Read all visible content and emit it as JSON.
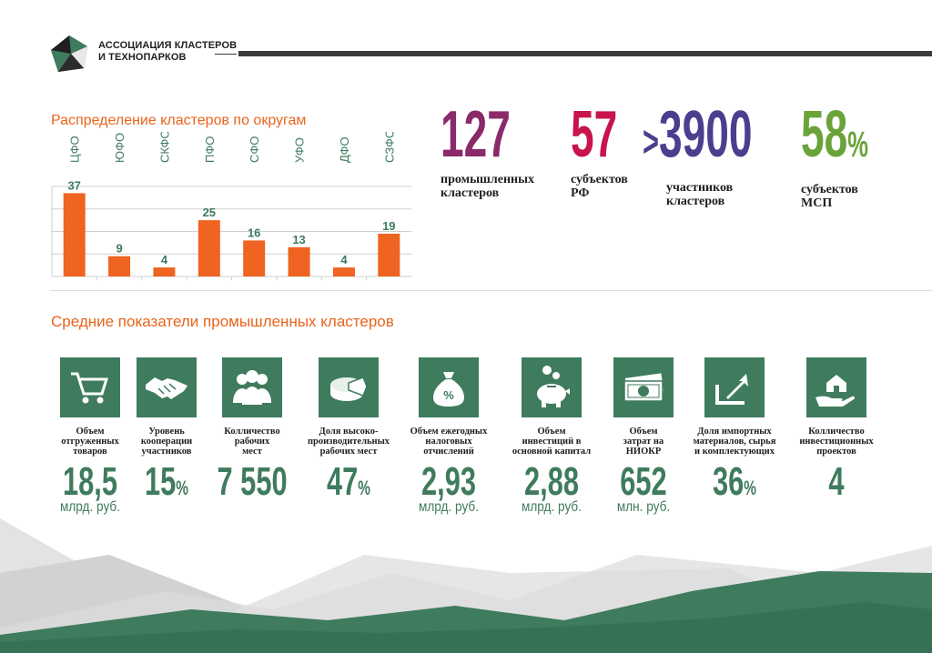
{
  "header": {
    "org_line1": "АССОЦИАЦИЯ КЛАСТЕРОВ",
    "org_line2": "И ТЕХНОПАРКОВ"
  },
  "chart_title": "Распределение кластеров по округам",
  "chart_data": {
    "type": "bar",
    "title": "Распределение кластеров по округам",
    "categories": [
      "ЦФО",
      "ЮФО",
      "СКФО",
      "ПФО",
      "СФО",
      "УФО",
      "ДФО",
      "СЗФО"
    ],
    "values": [
      37,
      9,
      4,
      25,
      16,
      13,
      4,
      19
    ],
    "ylim": [
      0,
      40
    ],
    "grid": true,
    "bar_color": "#ee6420",
    "label_color": "#3f7b5d"
  },
  "kpis": [
    {
      "value": "127",
      "prefix": "",
      "suffix": "",
      "label1": "промышленных",
      "label2": "кластеров",
      "color": "#8a2a6a"
    },
    {
      "value": "57",
      "prefix": "",
      "suffix": "",
      "label1": "субъектов",
      "label2": "РФ",
      "color": "#c8134c"
    },
    {
      "value": "3900",
      "prefix": ">",
      "suffix": "",
      "label1": "участников",
      "label2": "кластеров",
      "color": "#4a3f8f"
    },
    {
      "value": "58",
      "prefix": "",
      "suffix": "%",
      "label1": "субъектов",
      "label2": "МСП",
      "color": "#6aa33a"
    }
  ],
  "section2_title": "Средние показатели промышленных кластеров",
  "indicators": [
    {
      "icon": "cart-icon",
      "label": [
        "Объем",
        "отгруженных",
        "товаров"
      ],
      "value": "18,5",
      "pct": "",
      "unit": "млрд. руб."
    },
    {
      "icon": "handshake-icon",
      "label": [
        "Уровень",
        "кооперации",
        "участников"
      ],
      "value": "15",
      "pct": "%",
      "unit": ""
    },
    {
      "icon": "workers-icon",
      "label": [
        "Колличество",
        "рабочих",
        "мест"
      ],
      "value": "7 550",
      "pct": "",
      "unit": ""
    },
    {
      "icon": "pie-icon",
      "label": [
        "Доля высоко-",
        "производительных",
        "рабочих мест"
      ],
      "value": "47",
      "pct": "%",
      "unit": ""
    },
    {
      "icon": "money-bag-icon",
      "label": [
        "Объем ежегодных",
        "налоговых",
        "отчислений"
      ],
      "value": "2,93",
      "pct": "",
      "unit": "млрд. руб."
    },
    {
      "icon": "piggy-bank-icon",
      "label": [
        "Объем",
        "инвестиций в",
        "основной капитал"
      ],
      "value": "2,88",
      "pct": "",
      "unit": "млрд. руб."
    },
    {
      "icon": "banknotes-icon",
      "label": [
        "Объем",
        "затрат на",
        "НИОКР"
      ],
      "value": "652",
      "pct": "",
      "unit": "млн. руб."
    },
    {
      "icon": "import-icon",
      "label": [
        "Доля импортных",
        "материалов, сырья",
        "и комплектующих"
      ],
      "value": "36",
      "pct": "%",
      "unit": ""
    },
    {
      "icon": "house-hand-icon",
      "label": [
        "Колличество",
        "инвестиционных",
        "проектов"
      ],
      "value": "4",
      "pct": "",
      "unit": ""
    }
  ]
}
